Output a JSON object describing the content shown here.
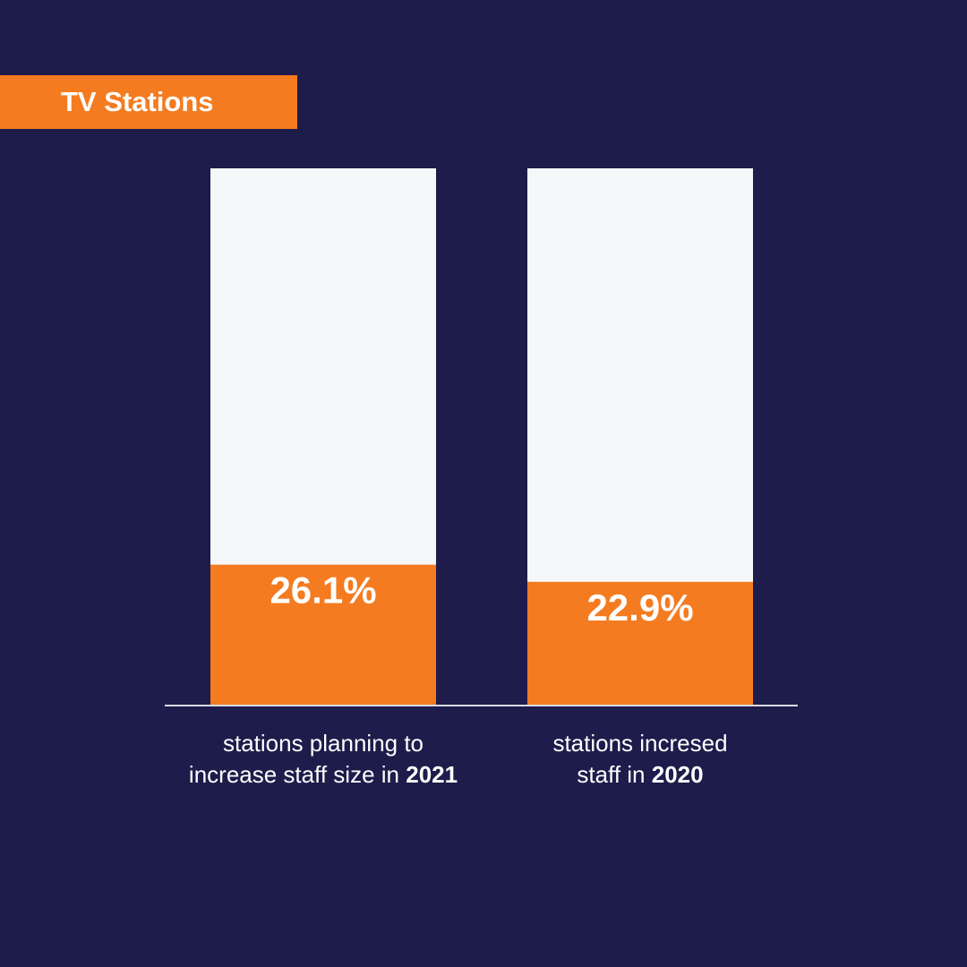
{
  "title": "TV Stations",
  "colors": {
    "background": "#1e1c4b",
    "accent": "#f47b20",
    "bar_track": "#f5f7f8",
    "text": "#ffffff",
    "axis": "#d9dbe6"
  },
  "chart_data": {
    "type": "bar",
    "title": "TV Stations",
    "ylim": [
      0,
      100
    ],
    "value_suffix": "%",
    "categories": [
      {
        "line1": "stations planning to",
        "line2_prefix": "increase staff size in ",
        "line2_bold": "2021"
      },
      {
        "line1": "stations incresed",
        "line2_prefix": "staff in ",
        "line2_bold": "2020"
      }
    ],
    "values": [
      26.1,
      22.9
    ],
    "value_labels": [
      "26.1%",
      "22.9%"
    ],
    "grid": false,
    "legend": "none"
  }
}
